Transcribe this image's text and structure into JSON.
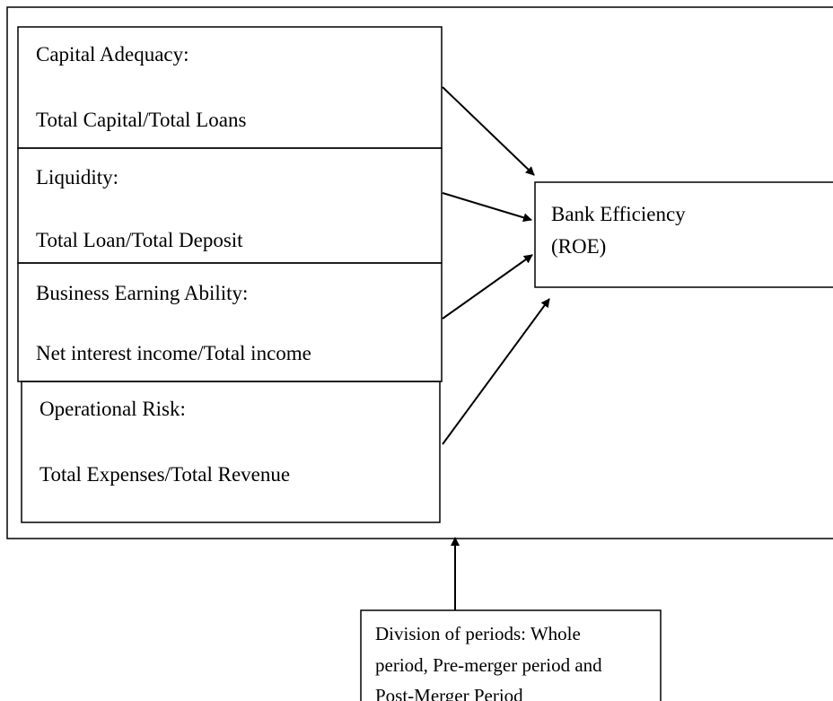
{
  "inputs": [
    {
      "title": "Capital Adequacy:",
      "formula": "Total Capital/Total Loans"
    },
    {
      "title": "Liquidity:",
      "formula": "Total Loan/Total Deposit"
    },
    {
      "title": "Business Earning Ability:",
      "formula": "Net interest income/Total income"
    },
    {
      "title": "Operational Risk:",
      "formula": "Total Expenses/Total Revenue"
    }
  ],
  "outcome": {
    "lines": [
      "Bank Efficiency",
      "(ROE)"
    ]
  },
  "moderator": {
    "lines": [
      "Division of periods: Whole",
      "period, Pre-merger period and",
      "Post-Merger Period"
    ]
  }
}
